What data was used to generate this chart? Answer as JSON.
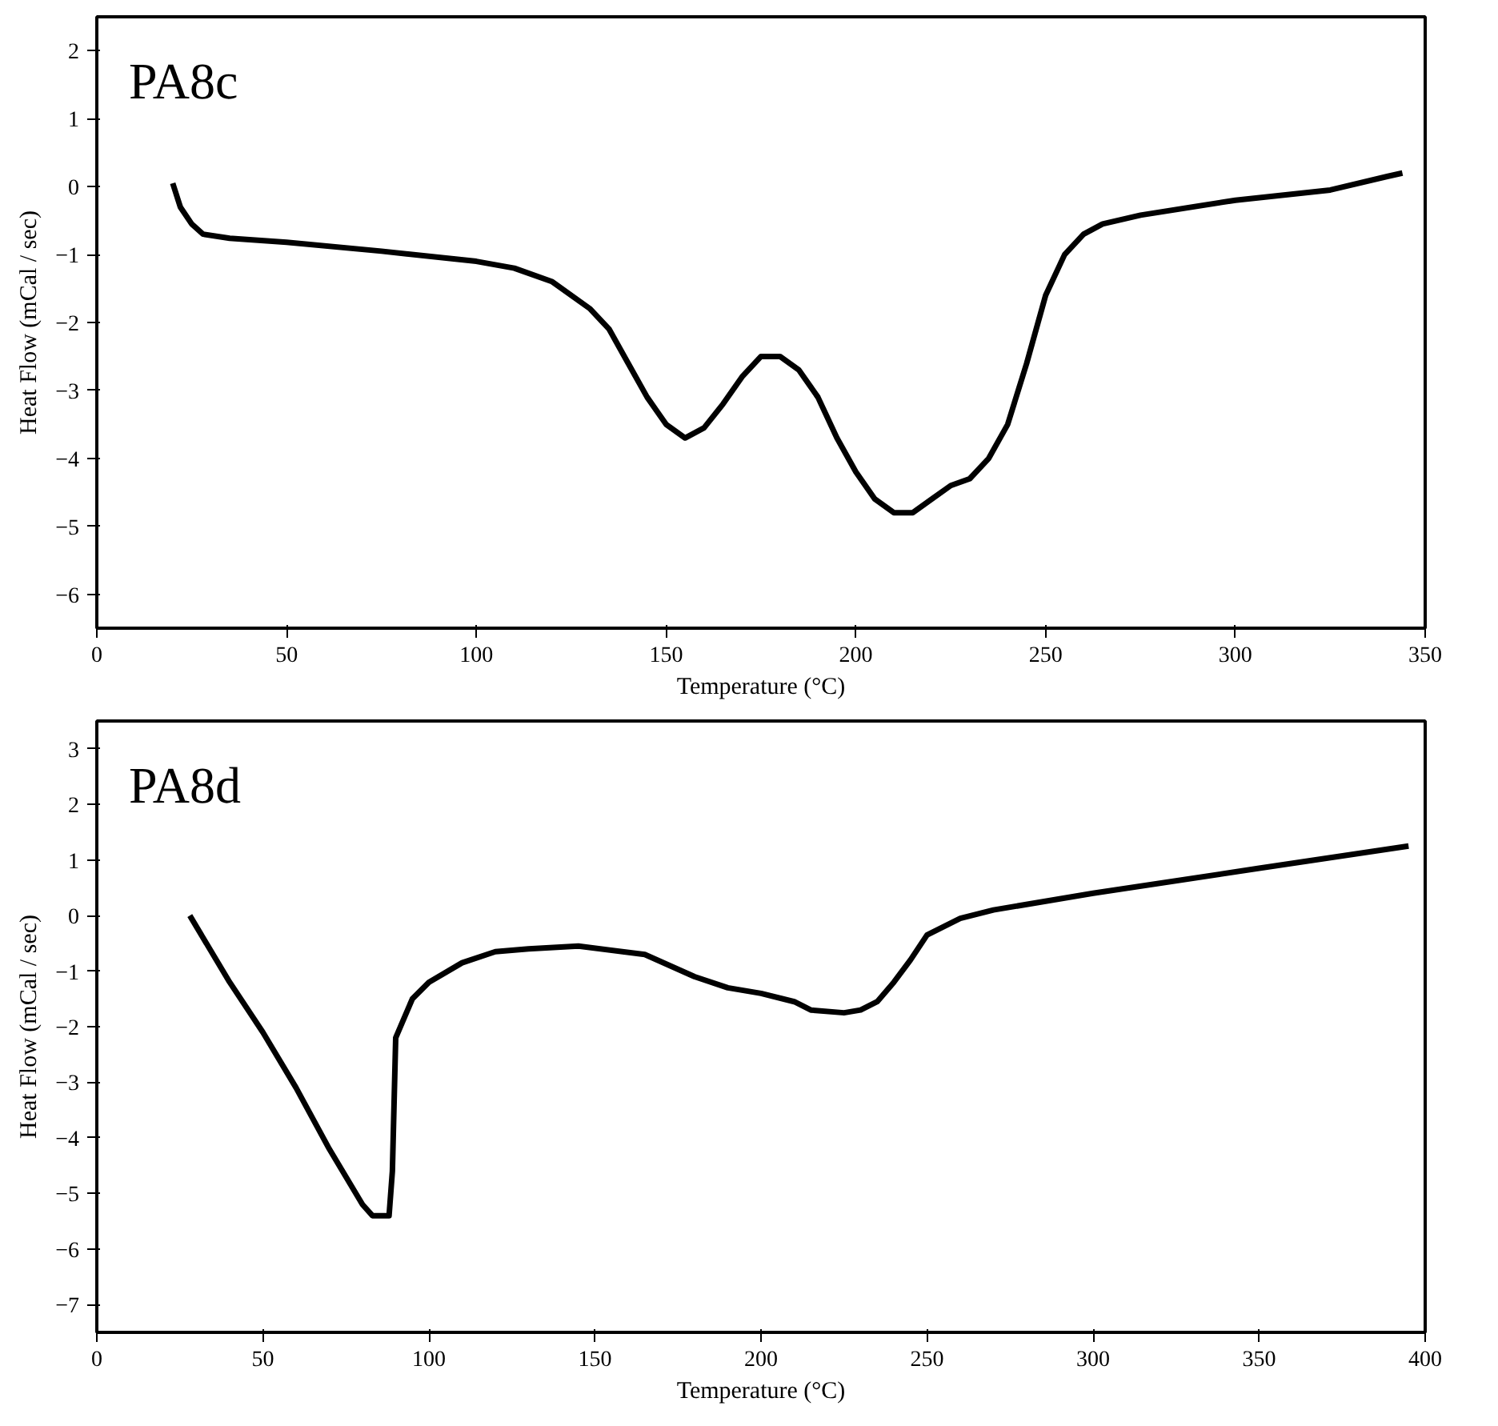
{
  "chart_data": [
    {
      "type": "line",
      "annotations": [
        "PA8c"
      ],
      "xlabel": "Temperature (°C)",
      "ylabel": "Heat Flow (mCal / sec)",
      "xlim": [
        0,
        350
      ],
      "ylim": [
        -6.5,
        2.5
      ],
      "xticks": [
        0,
        50,
        100,
        150,
        200,
        250,
        300,
        350
      ],
      "yticks": [
        -6,
        -5,
        -4,
        -3,
        -2,
        -1,
        0,
        1,
        2
      ],
      "series": [
        {
          "color": "#000000",
          "x": [
            20,
            22,
            25,
            28,
            35,
            50,
            75,
            100,
            110,
            120,
            130,
            135,
            140,
            145,
            150,
            155,
            160,
            165,
            170,
            175,
            180,
            185,
            190,
            195,
            200,
            205,
            210,
            215,
            220,
            225,
            230,
            235,
            240,
            245,
            250,
            255,
            260,
            265,
            275,
            300,
            325,
            340,
            344
          ],
          "values": [
            0.05,
            -0.3,
            -0.55,
            -0.7,
            -0.76,
            -0.82,
            -0.95,
            -1.1,
            -1.2,
            -1.4,
            -1.8,
            -2.1,
            -2.6,
            -3.1,
            -3.5,
            -3.7,
            -3.55,
            -3.2,
            -2.8,
            -2.5,
            -2.5,
            -2.7,
            -3.1,
            -3.7,
            -4.2,
            -4.6,
            -4.8,
            -4.8,
            -4.6,
            -4.4,
            -4.3,
            -4.0,
            -3.5,
            -2.6,
            -1.6,
            -1.0,
            -0.7,
            -0.55,
            -0.42,
            -0.2,
            -0.05,
            0.15,
            0.2
          ]
        }
      ]
    },
    {
      "type": "line",
      "annotations": [
        "PA8d"
      ],
      "xlabel": "Temperature (°C)",
      "ylabel": "Heat Flow (mCal / sec)",
      "xlim": [
        0,
        400
      ],
      "ylim": [
        -7.5,
        3.5
      ],
      "xticks": [
        0,
        50,
        100,
        150,
        200,
        250,
        300,
        350,
        400
      ],
      "yticks": [
        -7,
        -6,
        -5,
        -4,
        -3,
        -2,
        -1,
        0,
        1,
        2,
        3
      ],
      "series": [
        {
          "color": "#000000",
          "x": [
            28,
            40,
            50,
            60,
            70,
            80,
            83,
            88,
            89,
            90,
            95,
            100,
            110,
            120,
            130,
            145,
            165,
            180,
            190,
            200,
            210,
            215,
            225,
            230,
            235,
            240,
            245,
            250,
            260,
            270,
            300,
            350,
            395
          ],
          "values": [
            0,
            -1.2,
            -2.1,
            -3.1,
            -4.2,
            -5.2,
            -5.4,
            -5.4,
            -4.6,
            -2.2,
            -1.5,
            -1.2,
            -0.85,
            -0.65,
            -0.6,
            -0.55,
            -0.7,
            -1.1,
            -1.3,
            -1.4,
            -1.55,
            -1.7,
            -1.75,
            -1.7,
            -1.55,
            -1.2,
            -0.8,
            -0.35,
            -0.05,
            0.1,
            0.4,
            0.85,
            1.25
          ]
        }
      ]
    }
  ]
}
